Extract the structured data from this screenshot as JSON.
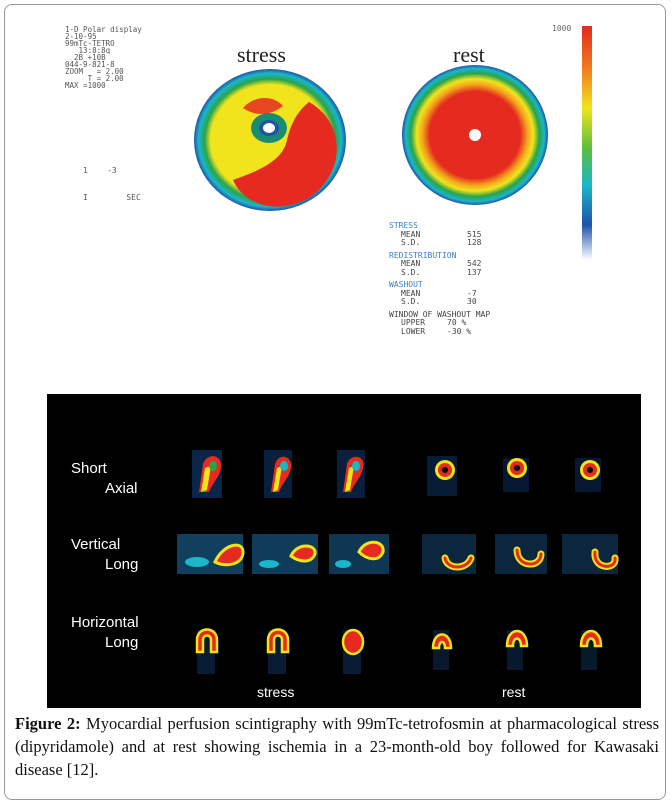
{
  "polar_display": {
    "header_lines": [
      "1-D Polar display",
      "2-10-95",
      "99mTc-TETRO",
      "   13:8:8q",
      "  2B +10B",
      "044-9-821-8",
      "ZOOM   = 2.00",
      "     T = 2.00",
      "MAX =1000"
    ],
    "timer_line1": "1    -3",
    "timer_line2": "I        SEC",
    "stress_title": "stress",
    "rest_title": "rest",
    "scale_max": "1000",
    "colors": {
      "red": "#e52a1f",
      "yellow": "#f2e41c",
      "green": "#2aa34a",
      "cyan": "#19b7c9",
      "blue": "#1f53a8"
    },
    "stats": {
      "stress_heading": "STRESS",
      "mean_label": "MEAN",
      "sd_label": "S.D.",
      "stress_mean": "515",
      "stress_sd": "128",
      "redistribution_heading": "REDISTRIBUTION",
      "redis_mean": "542",
      "redis_sd": "137",
      "washout_heading": "WASHOUT",
      "washout_mean": "-7",
      "washout_sd": "30",
      "window_heading": "WINDOW OF WASHOUT MAP",
      "upper_label": "UPPER",
      "upper_value": "70 %",
      "lower_label": "LOWER",
      "lower_value": "-30 %"
    }
  },
  "spect": {
    "rows": [
      {
        "line1": "Short",
        "line2": "Axial"
      },
      {
        "line1": "Vertical",
        "line2": "Long"
      },
      {
        "line1": "Horizontal",
        "line2": "Long"
      }
    ],
    "stress_label": "stress",
    "rest_label": "rest"
  },
  "caption": {
    "label": "Figure 2:",
    "text": " Myocardial perfusion scintigraphy with 99mTc-tetrofosmin at pharmacological stress (dipyridamole) and at rest showing ischemia in a 23-month-old boy followed for Kawasaki disease [12]."
  }
}
